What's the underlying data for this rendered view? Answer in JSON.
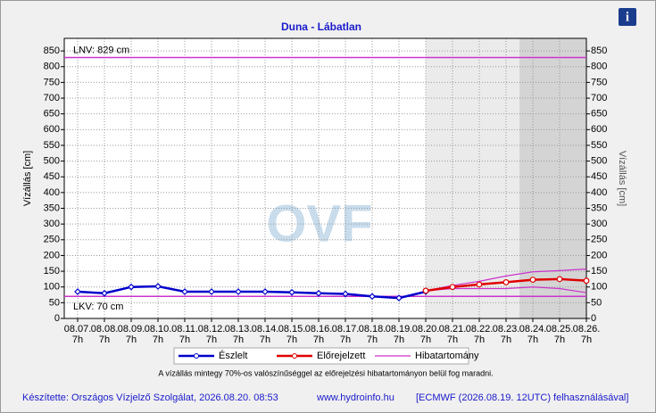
{
  "chart_data": {
    "type": "line",
    "title": "Duna - Lábatlan",
    "ylabel": "Vízállás [cm]",
    "y2label": "Vízállás [cm]",
    "categories": [
      "08.07.",
      "08.08.",
      "08.09.",
      "08.10.",
      "08.11.",
      "08.12.",
      "08.13.",
      "08.14.",
      "08.15.",
      "08.16.",
      "08.17.",
      "08.18.",
      "08.19.",
      "08.20.",
      "08.21.",
      "08.22.",
      "08.23.",
      "08.24.",
      "08.25.",
      "08.26."
    ],
    "time_label": "7h",
    "ylim": [
      0,
      890
    ],
    "yticks": [
      0,
      50,
      100,
      150,
      200,
      250,
      300,
      350,
      400,
      450,
      500,
      550,
      600,
      650,
      700,
      750,
      800,
      850
    ],
    "grid": true,
    "series": [
      {
        "name": "Észlelt",
        "color": "#0000cc",
        "values": [
          85,
          80,
          100,
          102,
          85,
          85,
          85,
          85,
          83,
          80,
          78,
          70,
          65,
          85,
          null,
          null,
          null,
          null,
          null,
          null
        ]
      },
      {
        "name": "Előrejelzett",
        "color": "#e00000",
        "values": [
          null,
          null,
          null,
          null,
          null,
          null,
          null,
          null,
          null,
          null,
          null,
          null,
          null,
          88,
          100,
          108,
          115,
          123,
          125,
          120
        ]
      },
      {
        "name": "Hibatartomány",
        "color": "#cc33cc",
        "upper": [
          null,
          null,
          null,
          null,
          null,
          null,
          null,
          null,
          null,
          null,
          null,
          null,
          null,
          88,
          105,
          118,
          135,
          148,
          152,
          157
        ],
        "lower": [
          null,
          null,
          null,
          null,
          null,
          null,
          null,
          null,
          null,
          null,
          null,
          null,
          null,
          88,
          95,
          95,
          95,
          100,
          95,
          82
        ]
      }
    ],
    "reference_lines": [
      {
        "label": "LNV: 829 cm",
        "value": 829,
        "color": "#cc33cc"
      },
      {
        "label": "LKV: 70 cm",
        "value": 70,
        "color": "#cc33cc"
      }
    ],
    "watermark": "OVF",
    "note": "A vízállás mintegy 70%-os valószínűséggel az előrejelzési hibatartományon belül fog maradni.",
    "footer": [
      "Készítette: Országos Vízjelző Szolgálat, 2026.08.20. 08:53",
      "www.hydroinfo.hu",
      "[ECMWF (2026.08.19. 12UTC) felhasználásával]"
    ],
    "info_icon": "i"
  }
}
